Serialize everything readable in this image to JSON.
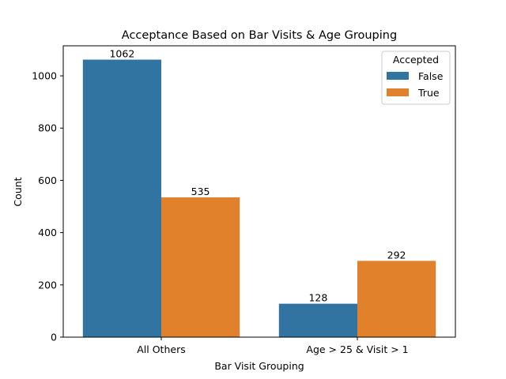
{
  "chart_data": {
    "type": "bar",
    "title": "Acceptance Based on Bar Visits & Age Grouping",
    "xlabel": "Bar Visit Grouping",
    "ylabel": "Count",
    "categories": [
      "All Others",
      "Age > 25 & Visit > 1"
    ],
    "series": [
      {
        "name": "False",
        "values": [
          1062,
          128
        ],
        "color": "#3274a1"
      },
      {
        "name": "True",
        "values": [
          535,
          292
        ],
        "color": "#e1812c"
      }
    ],
    "ylim": [
      0,
      1115
    ],
    "yticks": [
      0,
      200,
      400,
      600,
      800,
      1000
    ],
    "grid": false,
    "legend": {
      "title": "Accepted",
      "placement": "top-right"
    },
    "data_labels": true
  }
}
